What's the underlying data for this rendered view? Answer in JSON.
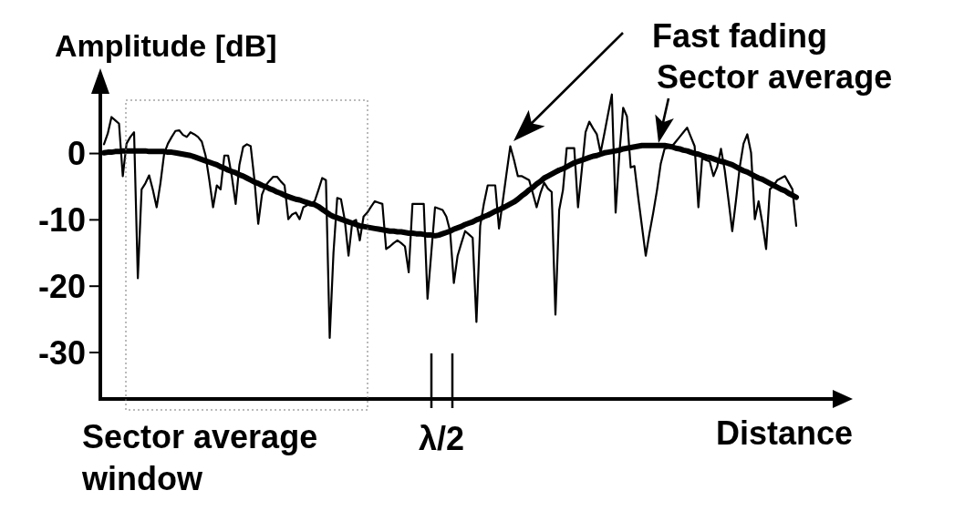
{
  "chart_data": {
    "type": "line",
    "xlabel": "Distance",
    "ylabel": "Amplitude [dB]",
    "ylim": [
      -37,
      9
    ],
    "yticks": [
      0,
      -10,
      -20,
      -30
    ],
    "tick_labels": "y",
    "categories": [
      null,
      null,
      null,
      null,
      null,
      null,
      null,
      null,
      null,
      null,
      null,
      null,
      null,
      null,
      null,
      null,
      null,
      null,
      null,
      null,
      null,
      null,
      null,
      null,
      null,
      null,
      null,
      null,
      null,
      null,
      null,
      null,
      null,
      null,
      null,
      null,
      null,
      null,
      null,
      null,
      null,
      null,
      null,
      null,
      null,
      null,
      null,
      null,
      null,
      null,
      null,
      null,
      null,
      null,
      null,
      null,
      null,
      null,
      null,
      null,
      null,
      null,
      null,
      null,
      null,
      null,
      null,
      null,
      null,
      null,
      null,
      null,
      null,
      null,
      null,
      null,
      null,
      null,
      null,
      null,
      null,
      null,
      null,
      null,
      null,
      null,
      null,
      null,
      null,
      null,
      null,
      null,
      null,
      null,
      null,
      null,
      null,
      null,
      null,
      null,
      null,
      null,
      null,
      null,
      null,
      null,
      null,
      null,
      null,
      null,
      null,
      null,
      null,
      null,
      null,
      null,
      null,
      null,
      null,
      null,
      null,
      null,
      null,
      null,
      null,
      null,
      null,
      null,
      null,
      null,
      null,
      null,
      null,
      null,
      null,
      null,
      null,
      null,
      null,
      null,
      null,
      null,
      null,
      null,
      null,
      null,
      null,
      null,
      null,
      null,
      null,
      null,
      null,
      null,
      null,
      null,
      null,
      null,
      null,
      null,
      null,
      null,
      null,
      null,
      null,
      null,
      null,
      null,
      null,
      null,
      null,
      null,
      null,
      null,
      null,
      null,
      null,
      null,
      null,
      null,
      null,
      null,
      null,
      null,
      null
    ],
    "series": [
      {
        "color": "#000000",
        "values": [
          1.4,
          3.0,
          5.5,
          5.0,
          4.5,
          -3.4,
          1.5,
          2.5,
          3.2,
          -18.8,
          -5.4,
          -4.5,
          -3.3,
          -5.5,
          -8.1,
          -4.5,
          0,
          1.5,
          2.5,
          3.4,
          3.5,
          2.8,
          2.5,
          3.2,
          2.9,
          2.5,
          1.8,
          -0.3,
          -4.0,
          -8.1,
          -4.8,
          -5.4,
          -0.3,
          -0.3,
          -3.5,
          -7.6,
          -1.7,
          1.0,
          1.4,
          1.1,
          -4.0,
          -10.6,
          -6.2,
          -4.8,
          -4.1,
          -3.5,
          -3.5,
          -4.2,
          -4.8,
          -9.9,
          -9.2,
          -8.9,
          -9.9,
          -8.1,
          -7.8,
          -7.5,
          -7.2,
          -5.5,
          -3.7,
          -4.0,
          -27.8,
          -15,
          -6.7,
          -6.9,
          -10,
          -15.4,
          -10.3,
          -10.0,
          -13.1,
          -9.5,
          -8.9,
          -8.0,
          -7.2,
          -7.4,
          -7.6,
          -14.4,
          -14.0,
          -13.5,
          -13.1,
          -13.5,
          -14.0,
          -17.9,
          -7.6,
          -7.6,
          -7.6,
          -7.6,
          -21.9,
          -15,
          -8.1,
          -8.3,
          -8.5,
          -9.5,
          -11.7,
          -19.5,
          -15.4,
          -13.5,
          -11.7,
          -12.2,
          -12.7,
          -25.4,
          -10.9,
          -7.5,
          -4.8,
          -4.8,
          -4.8,
          -11.3,
          -7.2,
          -3,
          1.1,
          -1.0,
          -3.4,
          -3.4,
          -3.7,
          -4.0,
          -6,
          -8.1,
          -6,
          -4.4,
          -5.3,
          -5.8,
          -24.3,
          -8.5,
          -5.5,
          0.8,
          0.8,
          0.8,
          -8.1,
          -2.5,
          3.2,
          4.8,
          3.8,
          2.9,
          0.1,
          3,
          6,
          8.9,
          -8.9,
          0,
          6.9,
          5.6,
          -2.1,
          -1.9,
          -6.6,
          -11,
          -15.4,
          -12,
          -8.9,
          -5.5,
          -1.5,
          0.7,
          0.9,
          1.1,
          1.8,
          2.5,
          3.2,
          3.9,
          2.5,
          1.1,
          -8.1,
          -0.7,
          -1.0,
          -1.2,
          -3.4,
          -2,
          0.7,
          -2.5,
          -7,
          -11.7,
          -7,
          -2,
          1.5,
          2.9,
          0.1,
          -9.9,
          -7.2,
          -10.5,
          -14.4,
          -5.4,
          -4.8,
          -4.0,
          -3.7,
          -3.4,
          -4.4,
          -5.4,
          -10.9
        ]
      },
      {
        "color": "#000000",
        "values": [
          0.1,
          0.2,
          0.2,
          0.3,
          0.3,
          0.4,
          0.4,
          0.4,
          0.4,
          0.4,
          0.4,
          0.4,
          0.3,
          0.3,
          0.3,
          0.3,
          0.3,
          0.2,
          0.2,
          0.1,
          0,
          -0.1,
          -0.2,
          -0.3,
          -0.5,
          -0.7,
          -0.9,
          -1.1,
          -1.3,
          -1.5,
          -1.7,
          -2.0,
          -2.2,
          -2.5,
          -2.7,
          -2.9,
          -3.2,
          -3.4,
          -3.7,
          -4.0,
          -4.3,
          -4.5,
          -4.8,
          -5.0,
          -5.3,
          -5.5,
          -5.8,
          -6.0,
          -6.3,
          -6.5,
          -6.7,
          -6.9,
          -7.0,
          -7.2,
          -7.4,
          -7.6,
          -7.7,
          -8.0,
          -8.4,
          -8.8,
          -9.2,
          -9.5,
          -9.7,
          -9.9,
          -10.1,
          -10.3,
          -10.5,
          -10.7,
          -10.9,
          -11.0,
          -11.1,
          -11.2,
          -11.3,
          -11.4,
          -11.5,
          -11.6,
          -11.7,
          -11.7,
          -11.8,
          -11.8,
          -11.9,
          -12.0,
          -12.0,
          -12.1,
          -12.1,
          -12.2,
          -12.3,
          -12.3,
          -12.4,
          -12.3,
          -12.1,
          -11.9,
          -11.7,
          -11.4,
          -11.2,
          -11.0,
          -10.7,
          -10.5,
          -10.3,
          -10.0,
          -9.8,
          -9.5,
          -9.3,
          -9.0,
          -8.7,
          -8.5,
          -8.2,
          -7.9,
          -7.6,
          -7.3,
          -6.9,
          -6.4,
          -6.0,
          -5.5,
          -5.1,
          -4.6,
          -4.2,
          -3.7,
          -3.4,
          -3.1,
          -2.8,
          -2.5,
          -2.3,
          -2.0,
          -1.7,
          -1.4,
          -1.2,
          -1.0,
          -0.8,
          -0.6,
          -0.4,
          -0.3,
          -0.1,
          0.1,
          0.2,
          0.3,
          0.4,
          0.5,
          0.7,
          0.8,
          0.9,
          1.0,
          1.1,
          1.2,
          1.2,
          1.2,
          1.2,
          1.2,
          1.2,
          1.2,
          1.1,
          1.0,
          0.8,
          0.7,
          0.5,
          0.4,
          0.2,
          0.0,
          -0.1,
          -0.3,
          -0.5,
          -0.6,
          -0.8,
          -1.0,
          -1.2,
          -1.3,
          -1.5,
          -1.7,
          -2.0,
          -2.3,
          -2.6,
          -2.8,
          -3.1,
          -3.4,
          -3.7,
          -3.9,
          -4.2,
          -4.5,
          -4.8,
          -5.1,
          -5.4,
          -5.6,
          -6.0,
          -6.3,
          -6.6
        ]
      }
    ],
    "annotations": [
      "Fast fading",
      "Sector average",
      "Sector average window",
      "λ/2"
    ]
  }
}
